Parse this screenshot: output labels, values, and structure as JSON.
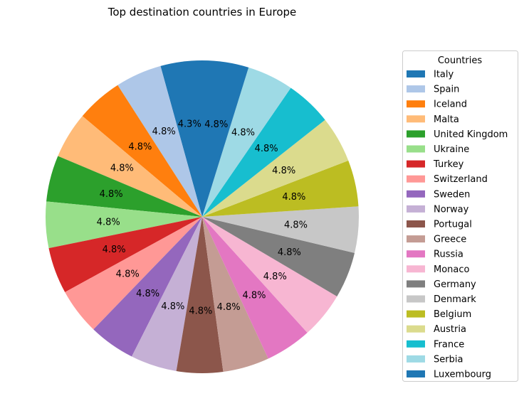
{
  "chart_data": {
    "type": "pie",
    "title": "Top destination countries in Europe",
    "legend_title": "Countries",
    "legend_position": "right",
    "start_angle_deg": 90,
    "direction": "counterclockwise",
    "slices": [
      {
        "label": "Italy",
        "pct_label": "4.3%",
        "value": 4.3,
        "color": "#1f77b4"
      },
      {
        "label": "Spain",
        "pct_label": "4.8%",
        "value": 4.8,
        "color": "#aec7e8"
      },
      {
        "label": "Iceland",
        "pct_label": "4.8%",
        "value": 4.8,
        "color": "#ff7f0e"
      },
      {
        "label": "Malta",
        "pct_label": "4.8%",
        "value": 4.8,
        "color": "#ffbb78"
      },
      {
        "label": "United Kingdom",
        "pct_label": "4.8%",
        "value": 4.8,
        "color": "#2ca02c"
      },
      {
        "label": "Ukraine",
        "pct_label": "4.8%",
        "value": 4.8,
        "color": "#98df8a"
      },
      {
        "label": "Turkey",
        "pct_label": "4.8%",
        "value": 4.8,
        "color": "#d62728"
      },
      {
        "label": "Switzerland",
        "pct_label": "4.8%",
        "value": 4.8,
        "color": "#ff9896"
      },
      {
        "label": "Sweden",
        "pct_label": "4.8%",
        "value": 4.8,
        "color": "#9467bd"
      },
      {
        "label": "Norway",
        "pct_label": "4.8%",
        "value": 4.8,
        "color": "#c5b0d5"
      },
      {
        "label": "Portugal",
        "pct_label": "4.8%",
        "value": 4.8,
        "color": "#8c564b"
      },
      {
        "label": "Greece",
        "pct_label": "4.8%",
        "value": 4.8,
        "color": "#c49c94"
      },
      {
        "label": "Russia",
        "pct_label": "4.8%",
        "value": 4.8,
        "color": "#e377c2"
      },
      {
        "label": "Monaco",
        "pct_label": "4.8%",
        "value": 4.8,
        "color": "#f7b6d2"
      },
      {
        "label": "Germany",
        "pct_label": "4.8%",
        "value": 4.8,
        "color": "#7f7f7f"
      },
      {
        "label": "Denmark",
        "pct_label": "4.8%",
        "value": 4.8,
        "color": "#c7c7c7"
      },
      {
        "label": "Belgium",
        "pct_label": "4.8%",
        "value": 4.8,
        "color": "#bcbd22"
      },
      {
        "label": "Austria",
        "pct_label": "4.8%",
        "value": 4.8,
        "color": "#dbdb8d"
      },
      {
        "label": "France",
        "pct_label": "4.8%",
        "value": 4.8,
        "color": "#17becf"
      },
      {
        "label": "Serbia",
        "pct_label": "4.8%",
        "value": 4.8,
        "color": "#9edae5"
      },
      {
        "label": "Luxembourg",
        "pct_label": "4.8%",
        "value": 4.8,
        "color": "#1f77b4"
      }
    ]
  }
}
